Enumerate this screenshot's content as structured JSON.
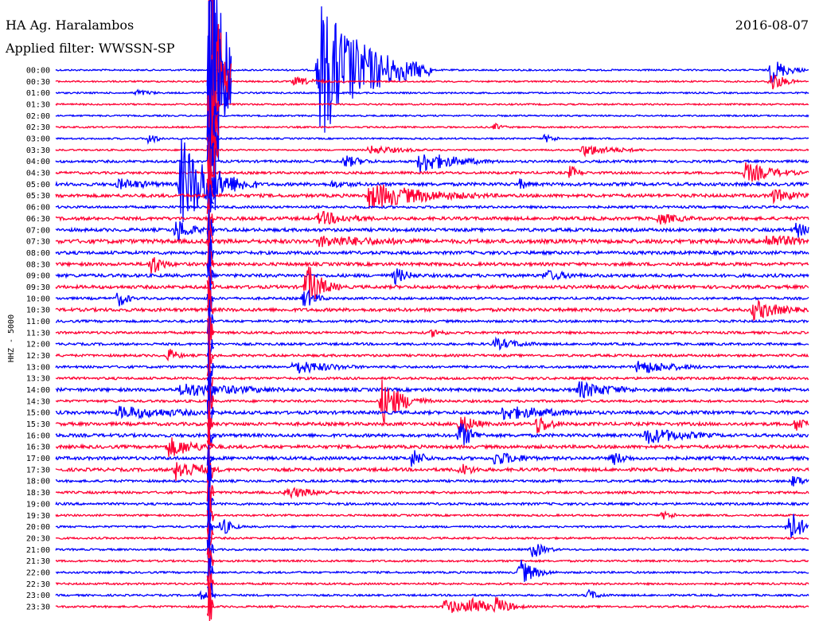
{
  "header": {
    "station": "HA Ag. Haralambos",
    "date": "2016-08-07",
    "filter": "Applied filter: WWSSN-SP"
  },
  "chart_data": {
    "type": "helicorder",
    "ylabel": "HHZ - 5000",
    "row_minutes": 30,
    "colors": [
      "#0000ff",
      "#ff0033"
    ],
    "rows": [
      "00:00",
      "00:30",
      "01:00",
      "01:30",
      "02:00",
      "02:30",
      "03:00",
      "03:30",
      "04:00",
      "04:30",
      "05:00",
      "05:30",
      "06:00",
      "06:30",
      "07:00",
      "07:30",
      "08:00",
      "08:30",
      "09:00",
      "09:30",
      "10:00",
      "10:30",
      "11:00",
      "11:30",
      "12:00",
      "12:30",
      "13:00",
      "13:30",
      "14:00",
      "14:30",
      "15:00",
      "15:30",
      "16:00",
      "16:30",
      "17:00",
      "17:30",
      "18:00",
      "18:30",
      "19:00",
      "19:30",
      "20:00",
      "20:30",
      "21:00",
      "21:30",
      "22:00",
      "22:30",
      "23:00",
      "23:30"
    ],
    "noise_level": [
      1,
      1,
      1,
      1,
      1,
      1,
      1,
      1,
      1.5,
      1.5,
      2,
      2,
      1.5,
      2,
      2,
      2.5,
      2,
      2,
      2,
      2,
      1.5,
      2,
      1.5,
      1.5,
      1.5,
      1.5,
      1.5,
      1.5,
      2,
      1.5,
      2,
      2,
      2,
      2,
      2,
      2,
      1.5,
      1.5,
      1.5,
      1.2,
      1.2,
      1.2,
      1.2,
      1.2,
      1.2,
      1.2,
      1.2,
      1.2
    ],
    "events": [
      {
        "row": "00:00",
        "minute": 10.5,
        "amplitude": 90,
        "duration": 1.8
      },
      {
        "row": "00:00",
        "minute": 28.5,
        "amplitude": 18,
        "duration": 0.6
      },
      {
        "row": "00:30",
        "minute": 9.5,
        "amplitude": 6,
        "duration": 1
      },
      {
        "row": "00:30",
        "minute": 28.5,
        "amplitude": 14,
        "duration": 0.5
      },
      {
        "row": "01:00",
        "minute": 3.2,
        "amplitude": 5,
        "duration": 0.7
      },
      {
        "row": "02:30",
        "minute": 17.5,
        "amplitude": 5,
        "duration": 0.4
      },
      {
        "row": "03:00",
        "minute": 3.7,
        "amplitude": 8,
        "duration": 0.4
      },
      {
        "row": "03:00",
        "minute": 19.5,
        "amplitude": 6,
        "duration": 0.5
      },
      {
        "row": "03:30",
        "minute": 12.5,
        "amplitude": 6,
        "duration": 1.5
      },
      {
        "row": "03:30",
        "minute": 21,
        "amplitude": 8,
        "duration": 1.5
      },
      {
        "row": "04:00",
        "minute": 11.5,
        "amplitude": 9,
        "duration": 0.8
      },
      {
        "row": "04:00",
        "minute": 14.5,
        "amplitude": 15,
        "duration": 1.5
      },
      {
        "row": "04:30",
        "minute": 20.5,
        "amplitude": 10,
        "duration": 0.4
      },
      {
        "row": "04:30",
        "minute": 27.5,
        "amplitude": 14,
        "duration": 1.2
      },
      {
        "row": "05:00",
        "minute": 5,
        "amplitude": 60,
        "duration": 1.2
      },
      {
        "row": "05:00",
        "minute": 2.5,
        "amplitude": 8,
        "duration": 1.5
      },
      {
        "row": "05:00",
        "minute": 11,
        "amplitude": 5,
        "duration": 1.5
      },
      {
        "row": "05:00",
        "minute": 18.5,
        "amplitude": 8,
        "duration": 0.4
      },
      {
        "row": "05:30",
        "minute": 12.5,
        "amplitude": 18,
        "duration": 2.5
      },
      {
        "row": "05:30",
        "minute": 28.5,
        "amplitude": 10,
        "duration": 1.2
      },
      {
        "row": "06:30",
        "minute": 10.5,
        "amplitude": 10,
        "duration": 1.5
      },
      {
        "row": "06:30",
        "minute": 24,
        "amplitude": 8,
        "duration": 1.2
      },
      {
        "row": "07:00",
        "minute": 4.8,
        "amplitude": 18,
        "duration": 0.6
      },
      {
        "row": "07:00",
        "minute": 29.5,
        "amplitude": 12,
        "duration": 0.5
      },
      {
        "row": "07:30",
        "minute": 10.5,
        "amplitude": 8,
        "duration": 4
      },
      {
        "row": "07:30",
        "minute": 28.3,
        "amplitude": 10,
        "duration": 1.8
      },
      {
        "row": "08:30",
        "minute": 3.8,
        "amplitude": 16,
        "duration": 0.5
      },
      {
        "row": "09:00",
        "minute": 13.5,
        "amplitude": 12,
        "duration": 0.6
      },
      {
        "row": "09:00",
        "minute": 19.5,
        "amplitude": 8,
        "duration": 1.2
      },
      {
        "row": "09:30",
        "minute": 10,
        "amplitude": 32,
        "duration": 0.6
      },
      {
        "row": "10:00",
        "minute": 2.5,
        "amplitude": 12,
        "duration": 0.4
      },
      {
        "row": "10:00",
        "minute": 9.9,
        "amplitude": 14,
        "duration": 0.5
      },
      {
        "row": "10:30",
        "minute": 27.8,
        "amplitude": 14,
        "duration": 1.2
      },
      {
        "row": "11:30",
        "minute": 15,
        "amplitude": 6,
        "duration": 0.6
      },
      {
        "row": "12:00",
        "minute": 17.5,
        "amplitude": 8,
        "duration": 1.2
      },
      {
        "row": "12:30",
        "minute": 4.5,
        "amplitude": 10,
        "duration": 0.4
      },
      {
        "row": "13:00",
        "minute": 9.5,
        "amplitude": 10,
        "duration": 1.6
      },
      {
        "row": "13:00",
        "minute": 23.2,
        "amplitude": 10,
        "duration": 1.6
      },
      {
        "row": "14:00",
        "minute": 5,
        "amplitude": 10,
        "duration": 3
      },
      {
        "row": "14:00",
        "minute": 20.8,
        "amplitude": 12,
        "duration": 1.6
      },
      {
        "row": "14:30",
        "minute": 13,
        "amplitude": 30,
        "duration": 0.8
      },
      {
        "row": "15:00",
        "minute": 2.5,
        "amplitude": 9,
        "duration": 3
      },
      {
        "row": "15:00",
        "minute": 17.8,
        "amplitude": 10,
        "duration": 2.5
      },
      {
        "row": "15:30",
        "minute": 16.1,
        "amplitude": 16,
        "duration": 0.6
      },
      {
        "row": "15:30",
        "minute": 19.2,
        "amplitude": 14,
        "duration": 0.6
      },
      {
        "row": "15:30",
        "minute": 29.5,
        "amplitude": 10,
        "duration": 1.2
      },
      {
        "row": "16:00",
        "minute": 16.1,
        "amplitude": 20,
        "duration": 0.5
      },
      {
        "row": "16:00",
        "minute": 23.5,
        "amplitude": 12,
        "duration": 1.8
      },
      {
        "row": "16:30",
        "minute": 4.5,
        "amplitude": 14,
        "duration": 1.2
      },
      {
        "row": "17:00",
        "minute": 14.2,
        "amplitude": 14,
        "duration": 0.5
      },
      {
        "row": "17:00",
        "minute": 17.5,
        "amplitude": 10,
        "duration": 1.2
      },
      {
        "row": "17:00",
        "minute": 22.2,
        "amplitude": 10,
        "duration": 0.6
      },
      {
        "row": "17:30",
        "minute": 4.8,
        "amplitude": 16,
        "duration": 1
      },
      {
        "row": "17:30",
        "minute": 16.1,
        "amplitude": 10,
        "duration": 0.6
      },
      {
        "row": "18:00",
        "minute": 29.4,
        "amplitude": 10,
        "duration": 0.4
      },
      {
        "row": "18:30",
        "minute": 9.2,
        "amplitude": 8,
        "duration": 1.5
      },
      {
        "row": "19:30",
        "minute": 24.2,
        "amplitude": 6,
        "duration": 0.6
      },
      {
        "row": "20:00",
        "minute": 6.6,
        "amplitude": 14,
        "duration": 0.4
      },
      {
        "row": "20:00",
        "minute": 29.2,
        "amplitude": 26,
        "duration": 0.5
      },
      {
        "row": "21:00",
        "minute": 19,
        "amplitude": 12,
        "duration": 0.5
      },
      {
        "row": "22:00",
        "minute": 18.5,
        "amplitude": 18,
        "duration": 0.6
      },
      {
        "row": "23:00",
        "minute": 5.8,
        "amplitude": 6,
        "duration": 0.6
      },
      {
        "row": "23:00",
        "minute": 21.2,
        "amplitude": 8,
        "duration": 0.5
      },
      {
        "row": "23:30",
        "minute": 15.5,
        "amplitude": 10,
        "duration": 1.4
      },
      {
        "row": "23:30",
        "minute": 16.5,
        "amplitude": 18,
        "duration": 0.5
      },
      {
        "row": "23:30",
        "minute": 17.5,
        "amplitude": 14,
        "duration": 0.6
      }
    ],
    "big_quake": {
      "start_row": "00:00",
      "minute": 6.1,
      "peak_amplitude": 300
    }
  }
}
